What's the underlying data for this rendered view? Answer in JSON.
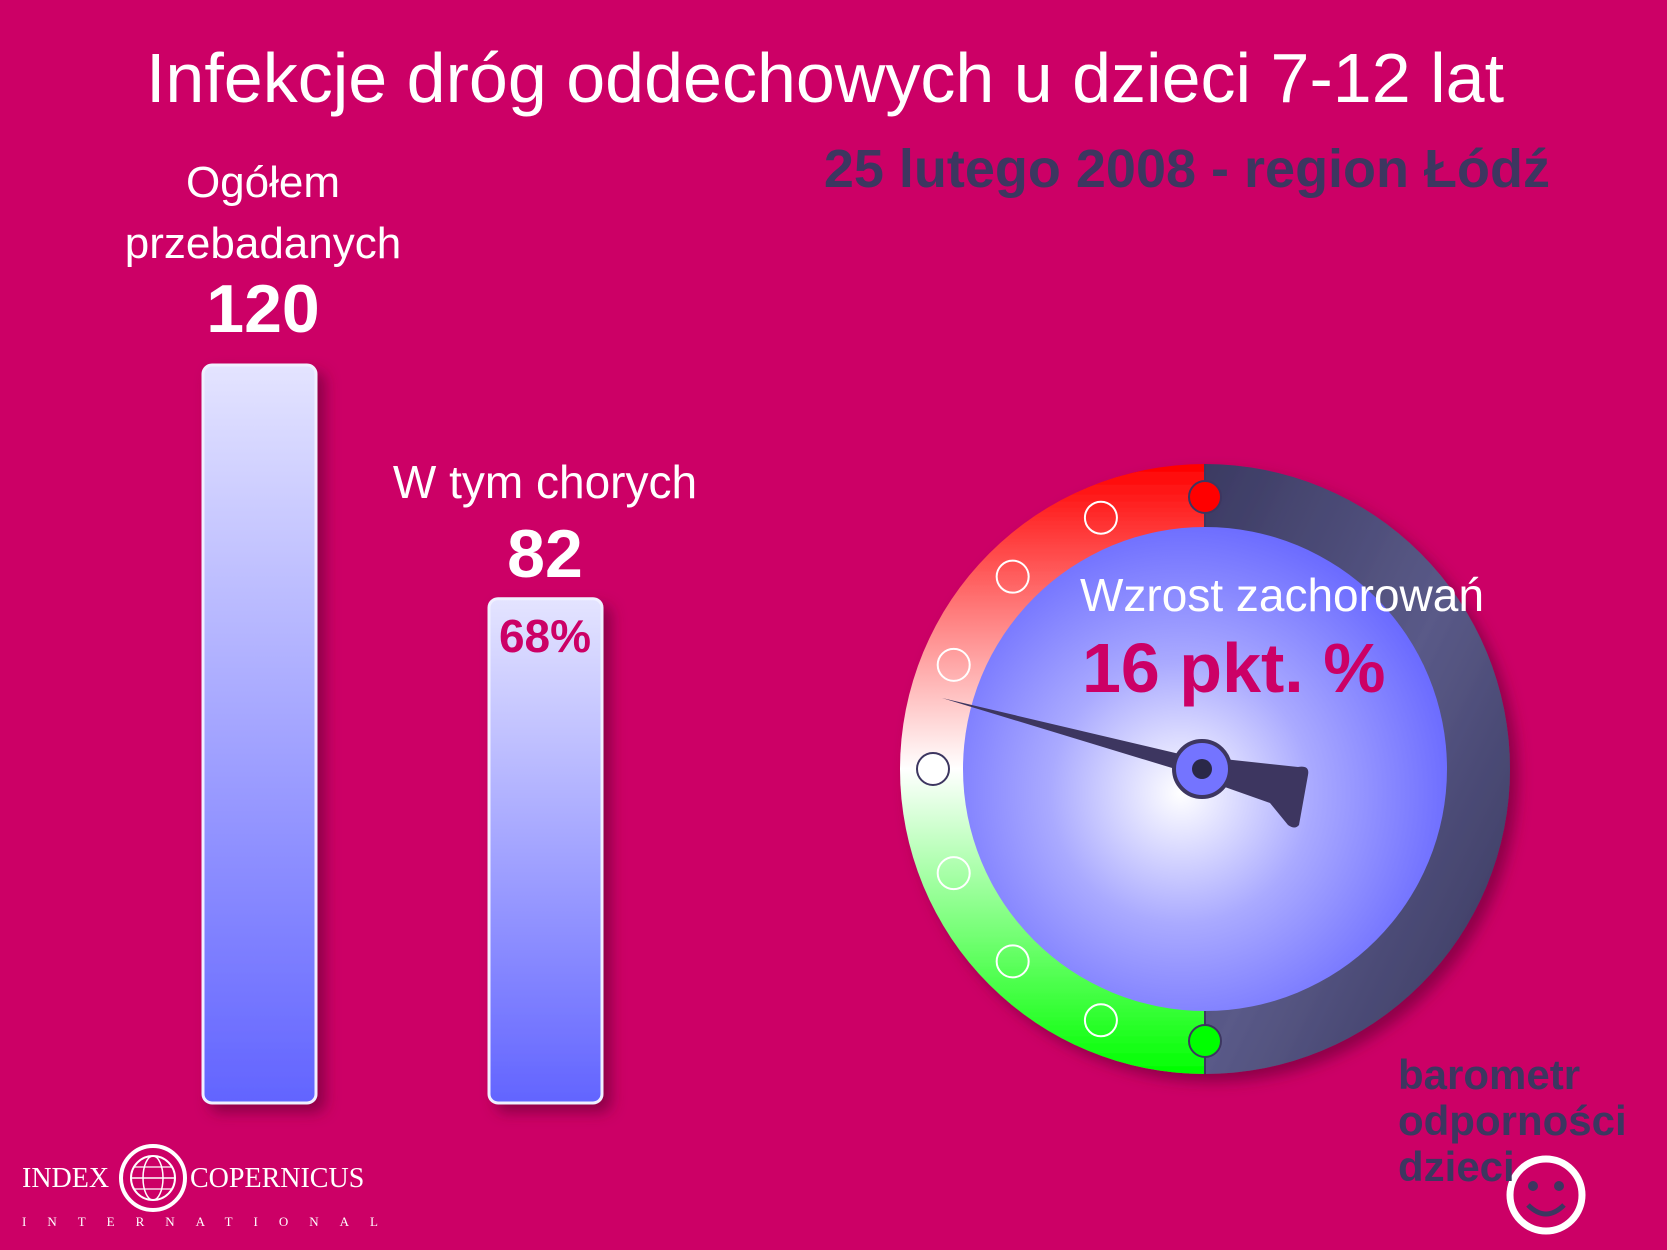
{
  "title": "Infekcje dróg oddechowych u dzieci 7-12 lat",
  "subtitle": "25 lutego 2008 - region Łódź",
  "chart_data": [
    {
      "type": "bar",
      "categories": [
        "Ogółem przebadanych",
        "W tym chorych"
      ],
      "values": [
        120,
        82
      ],
      "data_labels": [
        "120",
        "82"
      ],
      "percent_label": "68%",
      "ylim": [
        0,
        120
      ],
      "colors": {
        "bar_top": "#e2e2ff",
        "bar_bottom": "#6366ff"
      }
    },
    {
      "type": "gauge",
      "label": "Wzrost zachorowań",
      "value_label": "16 pkt. %",
      "value": 16,
      "zones": [
        {
          "name": "red",
          "color": "#ff0000"
        },
        {
          "name": "white",
          "color": "#ffffff"
        },
        {
          "name": "green",
          "color": "#00ff00"
        }
      ]
    }
  ],
  "bars": {
    "total": {
      "label_line1": "Ogółem",
      "label_line2": "przebadanych",
      "value": "120"
    },
    "sick": {
      "label": "W tym chorych",
      "value": "82",
      "percent": "68%"
    }
  },
  "gauge": {
    "label": "Wzrost zachorowań",
    "value": "16 pkt. %"
  },
  "logo": {
    "line1": "barometr",
    "line2": "odporności",
    "line3": "dzieci"
  },
  "footer_logo": {
    "left": "INDEX",
    "right": "COPERNICUS",
    "bottom": "INTERNATIONAL"
  },
  "colors": {
    "background": "#cc0066",
    "accent_dark": "#3d3660",
    "gauge_face": "#7474ff"
  }
}
